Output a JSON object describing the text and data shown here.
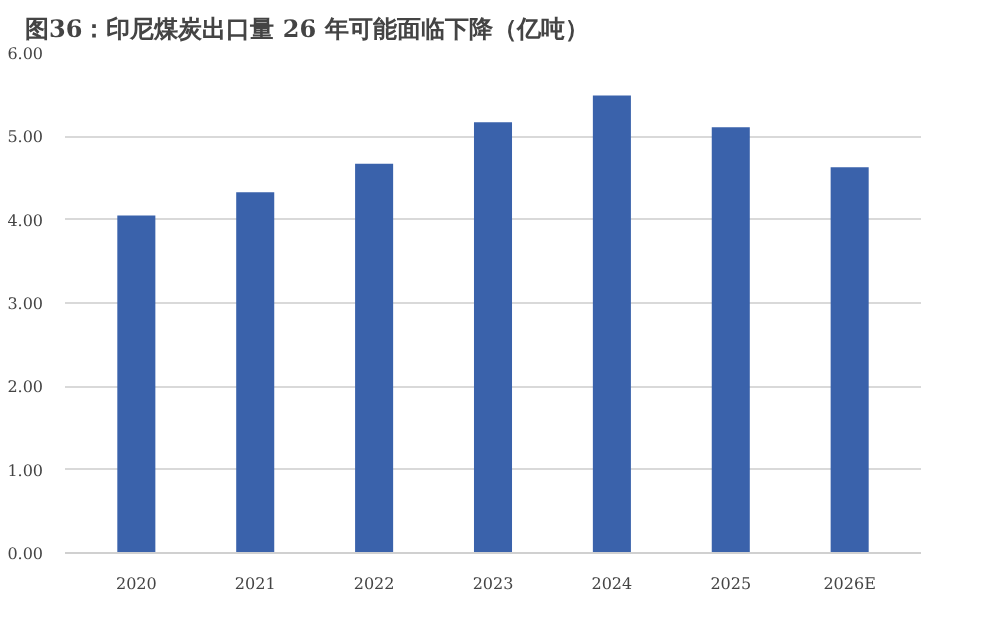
{
  "chart_data": {
    "type": "bar",
    "title": "图36：印尼煤炭出口量 26 年可能面临下降（亿吨）",
    "categories": [
      "2020",
      "2021",
      "2022",
      "2023",
      "2024",
      "2025",
      "2026E"
    ],
    "values": [
      4.05,
      4.33,
      4.67,
      5.17,
      5.49,
      5.11,
      4.63
    ],
    "color": "#3a62ab",
    "ylim": [
      0,
      6
    ],
    "yticks": [
      {
        "value": 0,
        "label": "0.00"
      },
      {
        "value": 1,
        "label": "1.00"
      },
      {
        "value": 2,
        "label": "2.00"
      },
      {
        "value": 3,
        "label": "3.00"
      },
      {
        "value": 4,
        "label": "4.00"
      },
      {
        "value": 5,
        "label": "5.00"
      },
      {
        "value": 6,
        "label": "6.00"
      }
    ],
    "grid": "y"
  }
}
